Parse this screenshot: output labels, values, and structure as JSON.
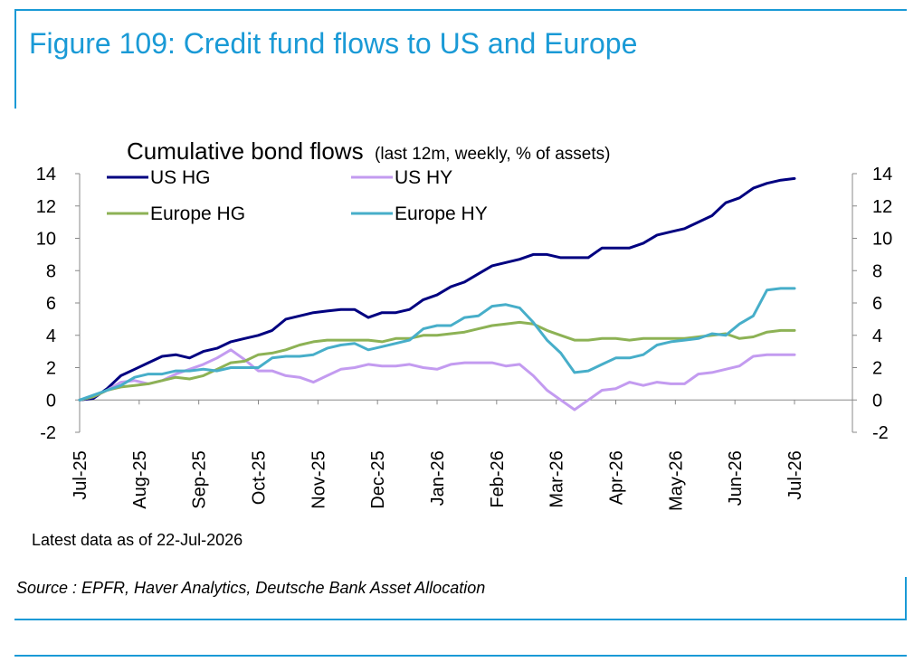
{
  "figure": {
    "title": "Figure 109: Credit fund flows to US and Europe",
    "note": "Latest data as of 22-Jul-2026",
    "source": "Source : EPFR, Haver Analytics, Deutsche Bank Asset Allocation"
  },
  "colors": {
    "brand": "#1a9ad6",
    "us_hg": "#000080",
    "us_hy": "#c39bf0",
    "europe_hg": "#8db255",
    "europe_hy": "#47aec9"
  },
  "chart_data": {
    "type": "line",
    "title": "Cumulative bond flows",
    "subtitle": "(last 12m, weekly, % of assets)",
    "ylim": [
      -2,
      14
    ],
    "yticks": [
      -2,
      0,
      2,
      4,
      6,
      8,
      10,
      12,
      14
    ],
    "y_axes": "both",
    "grid": false,
    "legend": "top-left",
    "xlabels": [
      "Jul-25",
      "Aug-25",
      "Sep-25",
      "Oct-25",
      "Nov-25",
      "Dec-25",
      "Jan-26",
      "Feb-26",
      "Mar-26",
      "Apr-26",
      "May-26",
      "Jun-26",
      "Jul-26"
    ],
    "series": [
      {
        "name": "US HG",
        "color": "#000080",
        "values": [
          0,
          0.1,
          0.7,
          1.5,
          1.9,
          2.3,
          2.7,
          2.8,
          2.6,
          3.0,
          3.2,
          3.6,
          3.8,
          4.0,
          4.3,
          5.0,
          5.2,
          5.4,
          5.5,
          5.6,
          5.6,
          5.1,
          5.4,
          5.4,
          5.6,
          6.2,
          6.5,
          7.0,
          7.3,
          7.8,
          8.3,
          8.5,
          8.7,
          9.0,
          9.0,
          8.8,
          8.8,
          8.8,
          9.4,
          9.4,
          9.4,
          9.7,
          10.2,
          10.4,
          10.6,
          11.0,
          11.4,
          12.2,
          12.5,
          13.1,
          13.4,
          13.6,
          13.7
        ]
      },
      {
        "name": "US HY",
        "color": "#c39bf0",
        "values": [
          0,
          0.2,
          0.6,
          1.1,
          1.2,
          1.0,
          1.2,
          1.6,
          1.9,
          2.2,
          2.6,
          3.1,
          2.5,
          1.8,
          1.8,
          1.5,
          1.4,
          1.1,
          1.5,
          1.9,
          2.0,
          2.2,
          2.1,
          2.1,
          2.2,
          2.0,
          1.9,
          2.2,
          2.3,
          2.3,
          2.3,
          2.1,
          2.2,
          1.5,
          0.6,
          0.0,
          -0.6,
          0.0,
          0.6,
          0.7,
          1.1,
          0.9,
          1.1,
          1.0,
          1.0,
          1.6,
          1.7,
          1.9,
          2.1,
          2.7,
          2.8,
          2.8,
          2.8
        ]
      },
      {
        "name": "Europe HG",
        "color": "#8db255",
        "values": [
          0,
          0.2,
          0.6,
          0.8,
          0.9,
          1.0,
          1.2,
          1.4,
          1.3,
          1.5,
          1.9,
          2.3,
          2.4,
          2.8,
          2.9,
          3.1,
          3.4,
          3.6,
          3.7,
          3.7,
          3.7,
          3.7,
          3.6,
          3.8,
          3.8,
          4.0,
          4.0,
          4.1,
          4.2,
          4.4,
          4.6,
          4.7,
          4.8,
          4.7,
          4.3,
          4.0,
          3.7,
          3.7,
          3.8,
          3.8,
          3.7,
          3.8,
          3.8,
          3.8,
          3.8,
          3.9,
          4.0,
          4.1,
          3.8,
          3.9,
          4.2,
          4.3,
          4.3
        ]
      },
      {
        "name": "Europe HY",
        "color": "#47aec9",
        "values": [
          0,
          0.3,
          0.6,
          0.9,
          1.4,
          1.6,
          1.6,
          1.8,
          1.8,
          1.9,
          1.8,
          2.0,
          2.0,
          2.0,
          2.6,
          2.7,
          2.7,
          2.8,
          3.2,
          3.4,
          3.5,
          3.1,
          3.3,
          3.5,
          3.7,
          4.4,
          4.6,
          4.6,
          5.1,
          5.2,
          5.8,
          5.9,
          5.7,
          4.8,
          3.7,
          2.9,
          1.7,
          1.8,
          2.2,
          2.6,
          2.6,
          2.8,
          3.4,
          3.6,
          3.7,
          3.8,
          4.1,
          4.0,
          4.7,
          5.2,
          6.8,
          6.9,
          6.9
        ]
      }
    ]
  }
}
